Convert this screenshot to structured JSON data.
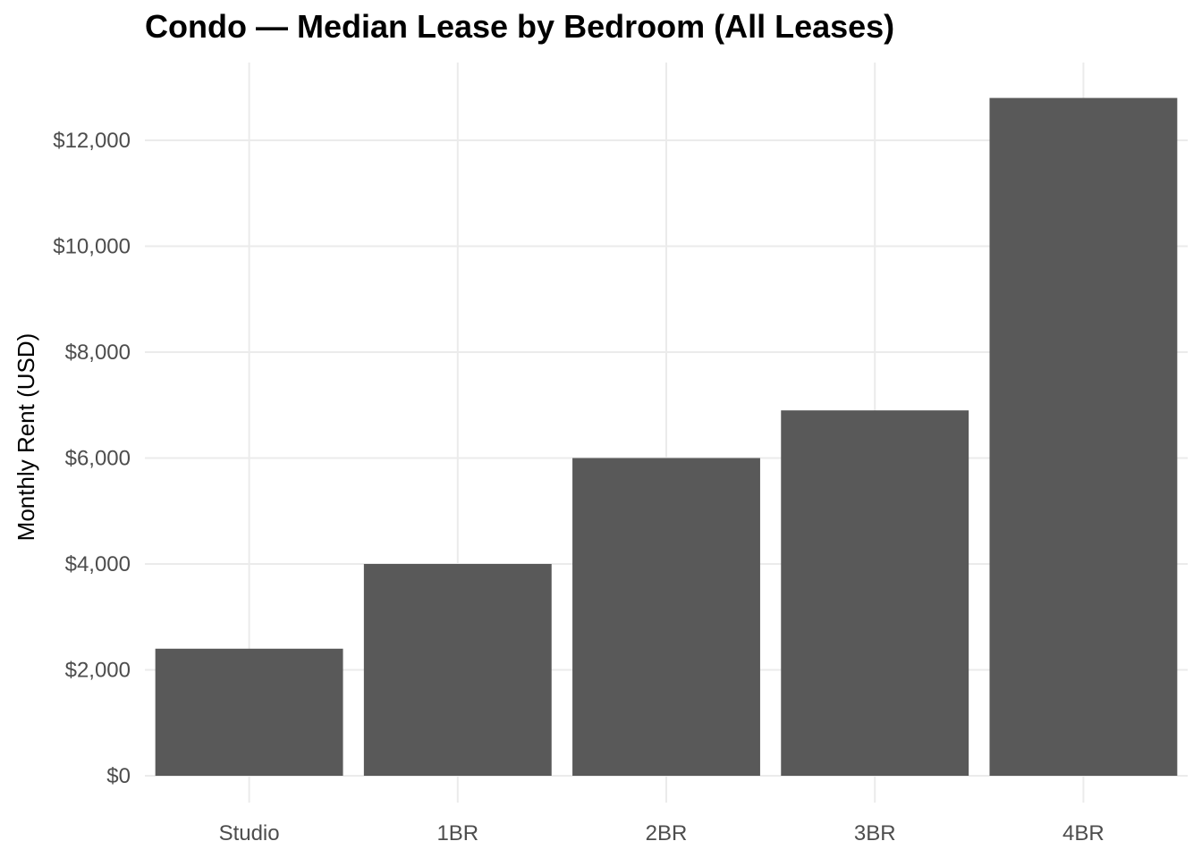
{
  "chart_data": {
    "type": "bar",
    "title": "Condo — Median Lease by Bedroom (All Leases)",
    "xlabel": "",
    "ylabel": "Monthly Rent (USD)",
    "categories": [
      "Studio",
      "1BR",
      "2BR",
      "3BR",
      "4BR"
    ],
    "values": [
      2400,
      4000,
      6000,
      6900,
      12800
    ],
    "ylim": [
      0,
      13500
    ],
    "yticks": [
      0,
      2000,
      4000,
      6000,
      8000,
      10000,
      12000
    ],
    "ytick_labels": [
      "$0",
      "$2,000",
      "$4,000",
      "$6,000",
      "$8,000",
      "$10,000",
      "$12,000"
    ],
    "grid": true,
    "bar_color": "#595959",
    "grid_color": "#ebebeb"
  }
}
